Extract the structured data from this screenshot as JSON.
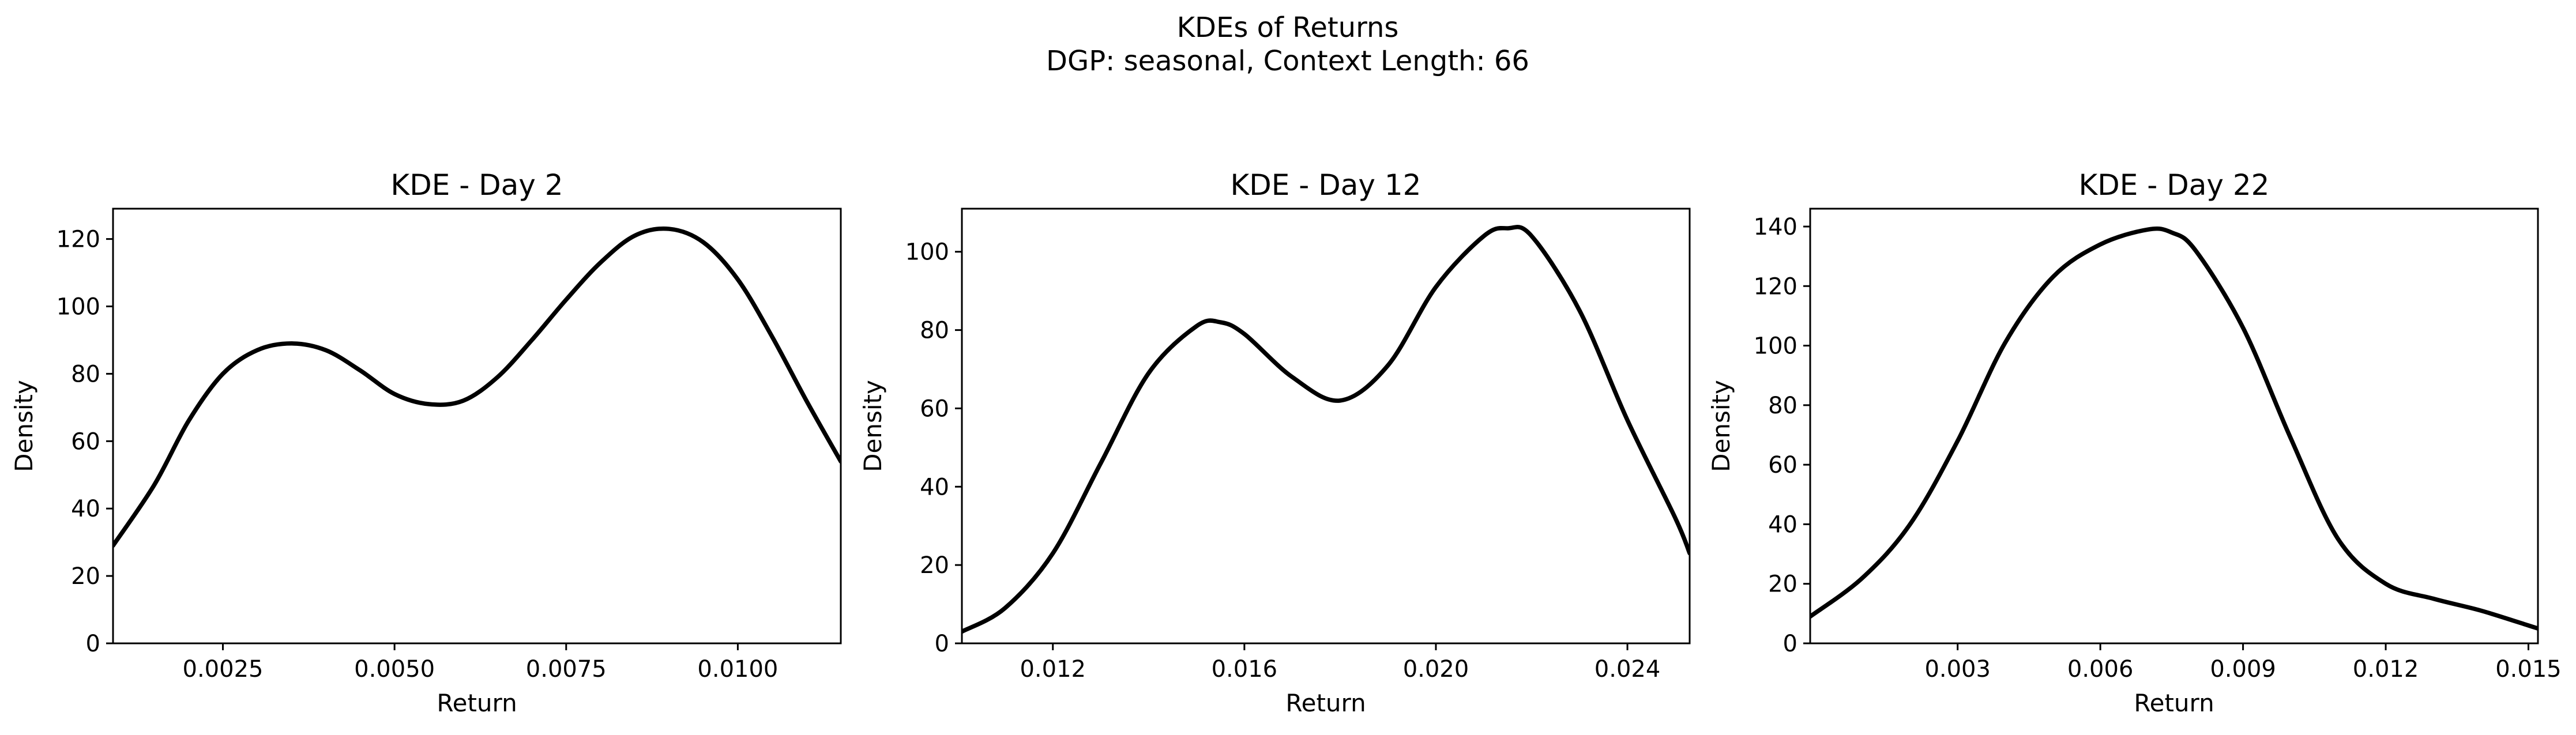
{
  "figure": {
    "title_line1": "KDEs of Returns",
    "title_line2": "DGP: seasonal, Context Length: 66"
  },
  "colors": {
    "line": "#000000",
    "background": "#ffffff"
  },
  "chart_data": [
    {
      "type": "line",
      "title": "KDE - Day 2",
      "xlabel": "Return",
      "ylabel": "Density",
      "xlim": [
        0.0009,
        0.0115
      ],
      "ylim": [
        0,
        129
      ],
      "xticks": [
        0.0025,
        0.005,
        0.0075,
        0.01
      ],
      "xtick_labels": [
        "0.0025",
        "0.0050",
        "0.0075",
        "0.0100"
      ],
      "yticks": [
        0,
        20,
        40,
        60,
        80,
        100,
        120
      ],
      "ytick_labels": [
        "0",
        "20",
        "40",
        "60",
        "80",
        "100",
        "120"
      ],
      "grid": false,
      "series": [
        {
          "x": [
            0.0009,
            0.0015,
            0.002,
            0.0025,
            0.003,
            0.0035,
            0.004,
            0.0045,
            0.005,
            0.0055,
            0.006,
            0.0065,
            0.007,
            0.0075,
            0.008,
            0.0085,
            0.009,
            0.0095,
            0.01,
            0.0105,
            0.011,
            0.0115
          ],
          "y": [
            29,
            47,
            66,
            80,
            87,
            89,
            87,
            81,
            74,
            71,
            72,
            79,
            90,
            102,
            113,
            121,
            123,
            119,
            108,
            91,
            72,
            54
          ]
        }
      ]
    },
    {
      "type": "line",
      "title": "KDE - Day 12",
      "xlabel": "Return",
      "ylabel": "Density",
      "xlim": [
        0.0101,
        0.0253
      ],
      "ylim": [
        0,
        111
      ],
      "xticks": [
        0.012,
        0.016,
        0.02,
        0.024
      ],
      "xtick_labels": [
        "0.012",
        "0.016",
        "0.020",
        "0.024"
      ],
      "yticks": [
        0,
        20,
        40,
        60,
        80,
        100
      ],
      "ytick_labels": [
        "0",
        "20",
        "40",
        "60",
        "80",
        "100"
      ],
      "grid": false,
      "series": [
        {
          "x": [
            0.0101,
            0.011,
            0.012,
            0.013,
            0.014,
            0.015,
            0.0155,
            0.016,
            0.017,
            0.018,
            0.019,
            0.02,
            0.021,
            0.0215,
            0.022,
            0.023,
            0.024,
            0.025,
            0.0253
          ],
          "y": [
            3,
            9,
            23,
            46,
            69,
            81,
            82,
            79,
            68,
            62,
            71,
            91,
            104,
            106,
            104,
            85,
            57,
            32,
            23
          ]
        }
      ]
    },
    {
      "type": "line",
      "title": "KDE - Day 22",
      "xlabel": "Return",
      "ylabel": "Density",
      "xlim": [
        -0.0001,
        0.0152
      ],
      "ylim": [
        0,
        146
      ],
      "xticks": [
        0.003,
        0.006,
        0.009,
        0.012,
        0.015
      ],
      "xtick_labels": [
        "0.003",
        "0.006",
        "0.009",
        "0.012",
        "0.015"
      ],
      "yticks": [
        0,
        20,
        40,
        60,
        80,
        100,
        120,
        140
      ],
      "ytick_labels": [
        "0",
        "20",
        "40",
        "60",
        "80",
        "100",
        "120",
        "140"
      ],
      "grid": false,
      "series": [
        {
          "x": [
            -0.0001,
            0.001,
            0.002,
            0.003,
            0.004,
            0.005,
            0.006,
            0.007,
            0.0075,
            0.008,
            0.009,
            0.01,
            0.011,
            0.012,
            0.013,
            0.014,
            0.015,
            0.0152
          ],
          "y": [
            9,
            22,
            40,
            68,
            101,
            123,
            134,
            139,
            138,
            132,
            106,
            69,
            35,
            20,
            15,
            11,
            6,
            5
          ]
        }
      ]
    }
  ]
}
